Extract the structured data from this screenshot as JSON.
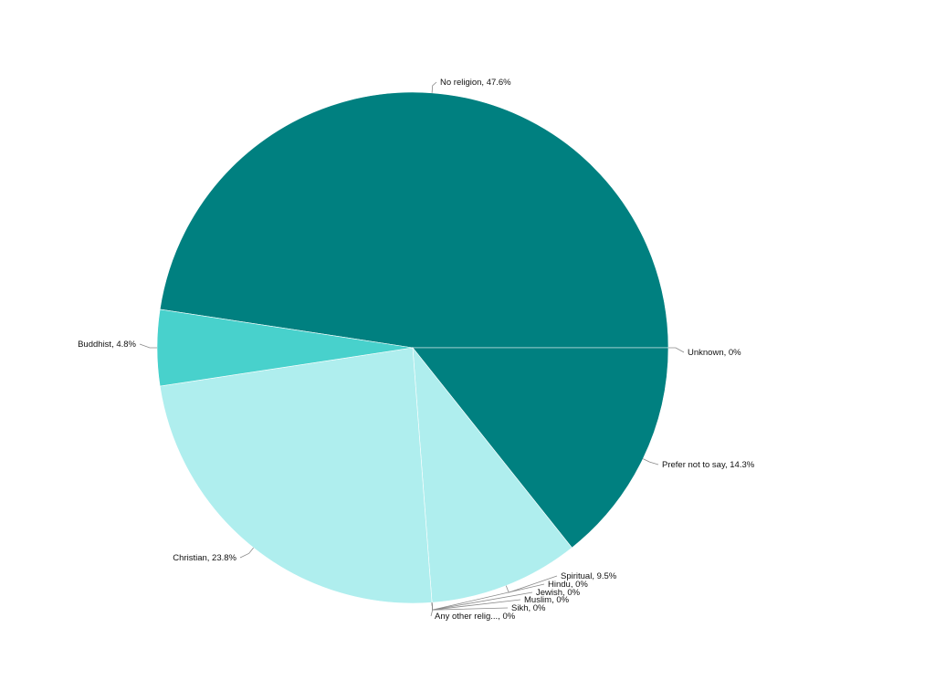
{
  "chart_data": {
    "type": "pie",
    "slices": [
      {
        "label": "No religion",
        "value": 47.6,
        "value_label": "47.6%",
        "color": "#008080"
      },
      {
        "label": "Unknown",
        "value": 0,
        "value_label": "0%",
        "color": "#008080"
      },
      {
        "label": "Prefer not to say",
        "value": 14.3,
        "value_label": "14.3%",
        "color": "#008080"
      },
      {
        "label": "Spiritual",
        "value": 9.5,
        "value_label": "9.5%",
        "color": "#afeeee"
      },
      {
        "label": "Hindu",
        "value": 0,
        "value_label": "0%",
        "color": "#afeeee"
      },
      {
        "label": "Jewish",
        "value": 0,
        "value_label": "0%",
        "color": "#afeeee"
      },
      {
        "label": "Muslim",
        "value": 0,
        "value_label": "0%",
        "color": "#afeeee"
      },
      {
        "label": "Sikh",
        "value": 0,
        "value_label": "0%",
        "color": "#afeeee"
      },
      {
        "label": "Any other relig...",
        "value": 0,
        "value_label": "0%",
        "color": "#afeeee"
      },
      {
        "label": "Christian",
        "value": 23.8,
        "value_label": "23.8%",
        "color": "#afeeee"
      },
      {
        "label": "Buddhist",
        "value": 4.8,
        "value_label": "4.8%",
        "color": "#48d1cc"
      }
    ]
  }
}
